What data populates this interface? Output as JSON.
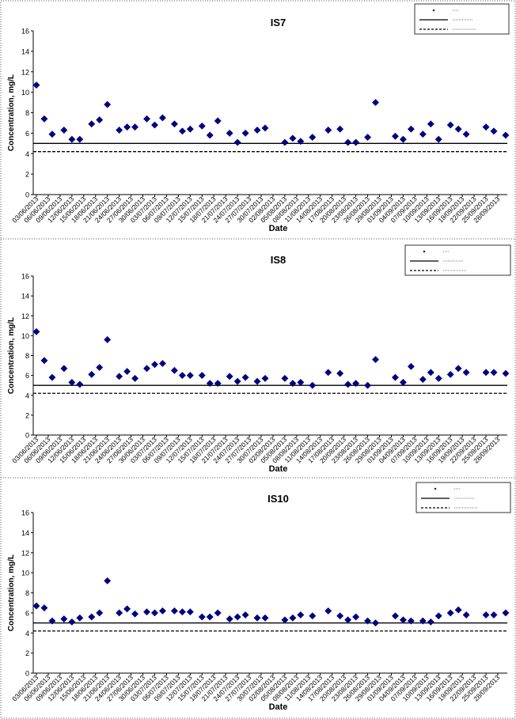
{
  "charts": [
    {
      "title": "IS7",
      "legend": {
        "entries": [
          "",
          "",
          ""
        ]
      }
    },
    {
      "title": "IS8",
      "legend": {
        "entries": [
          "",
          "",
          ""
        ]
      }
    },
    {
      "title": "IS10",
      "legend": {
        "entries": [
          "",
          "",
          ""
        ]
      }
    }
  ],
  "chart_data": [
    {
      "type": "scatter",
      "title": "IS7",
      "xlabel": "Date",
      "ylabel": "Concentration, mg/L",
      "ylim": [
        0,
        16
      ],
      "y_ticks": [
        0,
        2,
        4,
        6,
        8,
        10,
        12,
        14,
        16
      ],
      "x_tick_labels": [
        "03/06/2013",
        "06/06/2013",
        "09/06/2013",
        "12/06/2013",
        "15/06/2013",
        "18/06/2013",
        "21/06/2013",
        "24/06/2013",
        "27/06/2013",
        "30/06/2013",
        "03/07/2013",
        "06/07/2013",
        "09/07/2013",
        "12/07/2013",
        "15/07/2013",
        "18/07/2013",
        "21/07/2013",
        "24/07/2013",
        "27/07/2013",
        "30/07/2013",
        "02/08/2013",
        "05/08/2013",
        "08/08/2013",
        "11/08/2013",
        "14/08/2013",
        "17/08/2013",
        "20/08/2013",
        "23/08/2013",
        "26/08/2013",
        "29/08/2013",
        "01/09/2013",
        "04/09/2013",
        "07/09/2013",
        "10/09/2013",
        "13/09/2013",
        "16/09/2013",
        "19/09/2013",
        "22/09/2013",
        "25/09/2013",
        "28/09/2013"
      ],
      "x_dates": [
        "2013-06-03",
        "2013-09-28"
      ],
      "grid": false,
      "legend_position": "top-right",
      "hlines": [
        {
          "y": 5.0,
          "style": "solid"
        },
        {
          "y": 4.2,
          "style": "dashed"
        }
      ],
      "series": [
        {
          "marker": "diamond",
          "color": "#00007f",
          "points": [
            [
              "2013-06-03",
              10.7
            ],
            [
              "2013-06-05",
              7.4
            ],
            [
              "2013-06-07",
              5.9
            ],
            [
              "2013-06-10",
              6.3
            ],
            [
              "2013-06-12",
              5.4
            ],
            [
              "2013-06-14",
              5.4
            ],
            [
              "2013-06-17",
              6.9
            ],
            [
              "2013-06-19",
              7.3
            ],
            [
              "2013-06-21",
              8.8
            ],
            [
              "2013-06-24",
              6.3
            ],
            [
              "2013-06-26",
              6.6
            ],
            [
              "2013-06-28",
              6.6
            ],
            [
              "2013-07-01",
              7.4
            ],
            [
              "2013-07-03",
              6.8
            ],
            [
              "2013-07-05",
              7.5
            ],
            [
              "2013-07-08",
              6.9
            ],
            [
              "2013-07-10",
              6.2
            ],
            [
              "2013-07-12",
              6.4
            ],
            [
              "2013-07-15",
              6.7
            ],
            [
              "2013-07-17",
              5.8
            ],
            [
              "2013-07-19",
              7.2
            ],
            [
              "2013-07-22",
              6.0
            ],
            [
              "2013-07-24",
              5.1
            ],
            [
              "2013-07-26",
              6.0
            ],
            [
              "2013-07-29",
              6.3
            ],
            [
              "2013-07-31",
              6.5
            ],
            [
              "2013-08-05",
              5.1
            ],
            [
              "2013-08-07",
              5.5
            ],
            [
              "2013-08-09",
              5.2
            ],
            [
              "2013-08-12",
              5.6
            ],
            [
              "2013-08-16",
              6.3
            ],
            [
              "2013-08-19",
              6.4
            ],
            [
              "2013-08-21",
              5.1
            ],
            [
              "2013-08-23",
              5.1
            ],
            [
              "2013-08-26",
              5.6
            ],
            [
              "2013-08-28",
              9.0
            ],
            [
              "2013-09-02",
              5.7
            ],
            [
              "2013-09-04",
              5.4
            ],
            [
              "2013-09-06",
              6.4
            ],
            [
              "2013-09-09",
              5.9
            ],
            [
              "2013-09-11",
              6.9
            ],
            [
              "2013-09-13",
              5.4
            ],
            [
              "2013-09-16",
              6.8
            ],
            [
              "2013-09-18",
              6.4
            ],
            [
              "2013-09-20",
              5.9
            ],
            [
              "2013-09-25",
              6.6
            ],
            [
              "2013-09-27",
              6.2
            ],
            [
              "2013-09-30",
              5.8
            ]
          ]
        }
      ]
    },
    {
      "type": "scatter",
      "title": "IS8",
      "xlabel": "Date",
      "ylabel": "Concentration, mg/L",
      "ylim": [
        0,
        16
      ],
      "y_ticks": [
        0,
        2,
        4,
        6,
        8,
        10,
        12,
        14,
        16
      ],
      "x_tick_labels": [
        "03/06/2013",
        "06/06/2013",
        "09/06/2013",
        "12/06/2013",
        "15/06/2013",
        "18/06/2013",
        "21/06/2013",
        "24/06/2013",
        "27/06/2013",
        "30/06/2013",
        "03/07/2013",
        "06/07/2013",
        "09/07/2013",
        "12/07/2013",
        "15/07/2013",
        "18/07/2013",
        "21/07/2013",
        "24/07/2013",
        "27/07/2013",
        "30/07/2013",
        "02/08/2013",
        "05/08/2013",
        "08/08/2013",
        "11/08/2013",
        "14/08/2013",
        "17/08/2013",
        "20/08/2013",
        "23/08/2013",
        "26/08/2013",
        "29/08/2013",
        "01/09/2013",
        "04/09/2013",
        "07/09/2013",
        "10/09/2013",
        "13/09/2013",
        "16/09/2013",
        "19/09/2013",
        "22/09/2013",
        "25/09/2013",
        "28/09/2013"
      ],
      "x_dates": [
        "2013-06-03",
        "2013-09-28"
      ],
      "grid": false,
      "legend_position": "top-right",
      "hlines": [
        {
          "y": 5.0,
          "style": "solid"
        },
        {
          "y": 4.2,
          "style": "dashed"
        }
      ],
      "series": [
        {
          "marker": "diamond",
          "color": "#00007f",
          "points": [
            [
              "2013-06-03",
              10.4
            ],
            [
              "2013-06-05",
              7.5
            ],
            [
              "2013-06-07",
              5.8
            ],
            [
              "2013-06-10",
              6.7
            ],
            [
              "2013-06-12",
              5.3
            ],
            [
              "2013-06-14",
              5.1
            ],
            [
              "2013-06-17",
              6.1
            ],
            [
              "2013-06-19",
              6.8
            ],
            [
              "2013-06-21",
              9.6
            ],
            [
              "2013-06-24",
              5.9
            ],
            [
              "2013-06-26",
              6.4
            ],
            [
              "2013-06-28",
              5.7
            ],
            [
              "2013-07-01",
              6.7
            ],
            [
              "2013-07-03",
              7.1
            ],
            [
              "2013-07-05",
              7.2
            ],
            [
              "2013-07-08",
              6.5
            ],
            [
              "2013-07-10",
              6.0
            ],
            [
              "2013-07-12",
              6.0
            ],
            [
              "2013-07-15",
              6.0
            ],
            [
              "2013-07-17",
              5.2
            ],
            [
              "2013-07-19",
              5.2
            ],
            [
              "2013-07-22",
              5.9
            ],
            [
              "2013-07-24",
              5.4
            ],
            [
              "2013-07-26",
              5.8
            ],
            [
              "2013-07-29",
              5.4
            ],
            [
              "2013-07-31",
              5.7
            ],
            [
              "2013-08-05",
              5.7
            ],
            [
              "2013-08-07",
              5.2
            ],
            [
              "2013-08-09",
              5.3
            ],
            [
              "2013-08-12",
              5.0
            ],
            [
              "2013-08-16",
              6.3
            ],
            [
              "2013-08-19",
              6.2
            ],
            [
              "2013-08-21",
              5.1
            ],
            [
              "2013-08-23",
              5.2
            ],
            [
              "2013-08-26",
              5.0
            ],
            [
              "2013-08-28",
              7.6
            ],
            [
              "2013-09-02",
              5.8
            ],
            [
              "2013-09-04",
              5.3
            ],
            [
              "2013-09-06",
              6.9
            ],
            [
              "2013-09-09",
              5.6
            ],
            [
              "2013-09-11",
              6.3
            ],
            [
              "2013-09-13",
              5.7
            ],
            [
              "2013-09-16",
              6.1
            ],
            [
              "2013-09-18",
              6.7
            ],
            [
              "2013-09-20",
              6.3
            ],
            [
              "2013-09-25",
              6.3
            ],
            [
              "2013-09-27",
              6.3
            ],
            [
              "2013-09-30",
              6.2
            ]
          ]
        }
      ]
    },
    {
      "type": "scatter",
      "title": "IS10",
      "xlabel": "Date",
      "ylabel": "Concentration, mg/L",
      "ylim": [
        0,
        16
      ],
      "y_ticks": [
        0,
        2,
        4,
        6,
        8,
        10,
        12,
        14,
        16
      ],
      "x_tick_labels": [
        "03/06/2013",
        "06/06/2013",
        "09/06/2013",
        "12/06/2013",
        "15/06/2013",
        "18/06/2013",
        "21/06/2013",
        "24/06/2013",
        "27/06/2013",
        "30/06/2013",
        "03/07/2013",
        "06/07/2013",
        "09/07/2013",
        "12/07/2013",
        "15/07/2013",
        "18/07/2013",
        "21/07/2013",
        "24/07/2013",
        "27/07/2013",
        "30/07/2013",
        "02/08/2013",
        "05/08/2013",
        "08/08/2013",
        "11/08/2013",
        "14/08/2013",
        "17/08/2013",
        "20/08/2013",
        "23/08/2013",
        "26/08/2013",
        "29/08/2013",
        "01/09/2013",
        "04/09/2013",
        "07/09/2013",
        "10/09/2013",
        "13/09/2013",
        "16/09/2013",
        "19/09/2013",
        "22/09/2013",
        "25/09/2013",
        "28/09/2013"
      ],
      "x_dates": [
        "2013-06-03",
        "2013-09-28"
      ],
      "grid": false,
      "legend_position": "top-right",
      "hlines": [
        {
          "y": 5.0,
          "style": "solid"
        },
        {
          "y": 4.2,
          "style": "dashed"
        }
      ],
      "series": [
        {
          "marker": "diamond",
          "color": "#00007f",
          "points": [
            [
              "2013-06-03",
              6.7
            ],
            [
              "2013-06-05",
              6.5
            ],
            [
              "2013-06-07",
              5.2
            ],
            [
              "2013-06-10",
              5.4
            ],
            [
              "2013-06-12",
              5.1
            ],
            [
              "2013-06-14",
              5.5
            ],
            [
              "2013-06-17",
              5.6
            ],
            [
              "2013-06-19",
              6.0
            ],
            [
              "2013-06-21",
              9.2
            ],
            [
              "2013-06-24",
              6.0
            ],
            [
              "2013-06-26",
              6.4
            ],
            [
              "2013-06-28",
              5.9
            ],
            [
              "2013-07-01",
              6.1
            ],
            [
              "2013-07-03",
              6.0
            ],
            [
              "2013-07-05",
              6.2
            ],
            [
              "2013-07-08",
              6.2
            ],
            [
              "2013-07-10",
              6.1
            ],
            [
              "2013-07-12",
              6.1
            ],
            [
              "2013-07-15",
              5.6
            ],
            [
              "2013-07-17",
              5.6
            ],
            [
              "2013-07-19",
              6.0
            ],
            [
              "2013-07-22",
              5.4
            ],
            [
              "2013-07-24",
              5.6
            ],
            [
              "2013-07-26",
              5.8
            ],
            [
              "2013-07-29",
              5.5
            ],
            [
              "2013-07-31",
              5.5
            ],
            [
              "2013-08-05",
              5.3
            ],
            [
              "2013-08-07",
              5.5
            ],
            [
              "2013-08-09",
              5.8
            ],
            [
              "2013-08-12",
              5.7
            ],
            [
              "2013-08-16",
              6.2
            ],
            [
              "2013-08-19",
              5.7
            ],
            [
              "2013-08-21",
              5.3
            ],
            [
              "2013-08-23",
              5.6
            ],
            [
              "2013-08-26",
              5.2
            ],
            [
              "2013-08-28",
              5.0
            ],
            [
              "2013-09-02",
              5.7
            ],
            [
              "2013-09-04",
              5.3
            ],
            [
              "2013-09-06",
              5.2
            ],
            [
              "2013-09-09",
              5.2
            ],
            [
              "2013-09-11",
              5.1
            ],
            [
              "2013-09-13",
              5.7
            ],
            [
              "2013-09-16",
              6.0
            ],
            [
              "2013-09-18",
              6.3
            ],
            [
              "2013-09-20",
              5.8
            ],
            [
              "2013-09-25",
              5.8
            ],
            [
              "2013-09-27",
              5.8
            ],
            [
              "2013-09-30",
              6.0
            ]
          ]
        }
      ]
    }
  ]
}
